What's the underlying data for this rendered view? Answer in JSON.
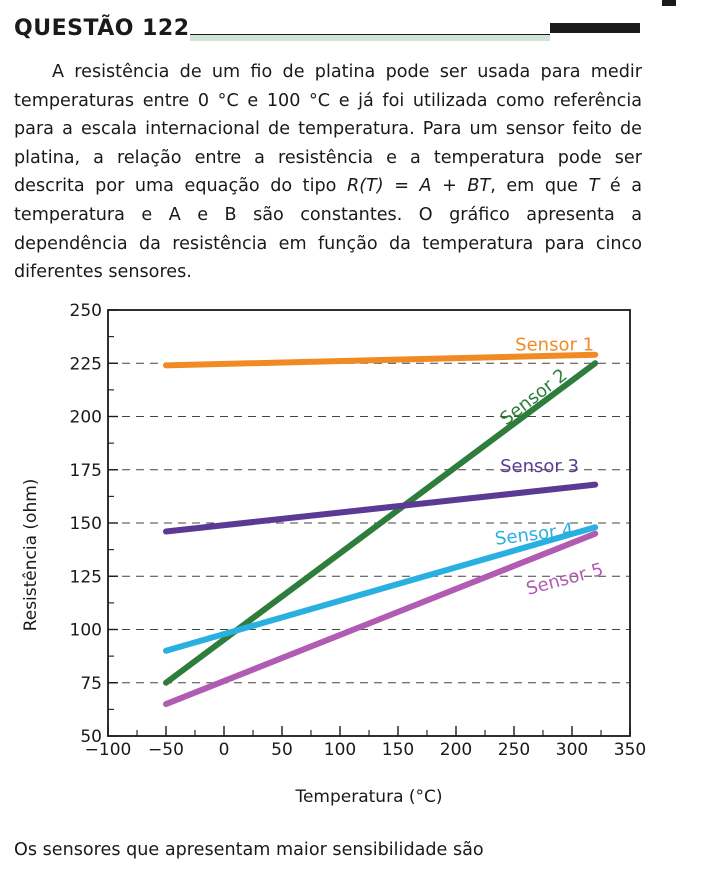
{
  "header": {
    "title": "QUESTÃO 122"
  },
  "stem": {
    "paragraph_lead": "A resistência de um fio de platina pode ser usada para medir temperaturas entre 0 °C e 100 °C e já foi utilizada como referência para a escala internacional de temperatura. Para um sensor feito de platina, a relação entre a resistência e a temperatura pode ser descrita por uma equação do tipo ",
    "equation": "R(T) = A + BT",
    "paragraph_mid": ", em que ",
    "var_t": "T",
    "paragraph_tail": " é a temperatura e A e B são constantes. O gráfico apresenta a dependência da resistência em função da temperatura para cinco diferentes sensores."
  },
  "chart_data": {
    "type": "line",
    "xlabel": "Temperatura (°C)",
    "ylabel": "Resistência (ohm)",
    "xlim": [
      -100,
      350
    ],
    "ylim": [
      50,
      250
    ],
    "x_ticks": [
      "−100",
      "−50",
      "0",
      "50",
      "100",
      "150",
      "200",
      "250",
      "300",
      "350"
    ],
    "y_ticks": [
      "50",
      "75",
      "100",
      "125",
      "150",
      "175",
      "200",
      "225",
      "250"
    ],
    "grid": "dashed horizontal",
    "series": [
      {
        "name": "Sensor 1",
        "color": "#f08a24",
        "x": [
          -50,
          320
        ],
        "y": [
          224,
          229
        ]
      },
      {
        "name": "Sensor 2",
        "color": "#2e7d3c",
        "x": [
          -50,
          320
        ],
        "y": [
          75,
          225
        ]
      },
      {
        "name": "Sensor 3",
        "color": "#5b3a96",
        "x": [
          -50,
          320
        ],
        "y": [
          146,
          168
        ]
      },
      {
        "name": "Sensor 4",
        "color": "#29b0e0",
        "x": [
          -50,
          320
        ],
        "y": [
          90,
          148
        ]
      },
      {
        "name": "Sensor 5",
        "color": "#b15cb3",
        "x": [
          -50,
          320
        ],
        "y": [
          65,
          145
        ]
      }
    ]
  },
  "footer": {
    "question": "Os sensores que apresentam maior sensibilidade são"
  }
}
